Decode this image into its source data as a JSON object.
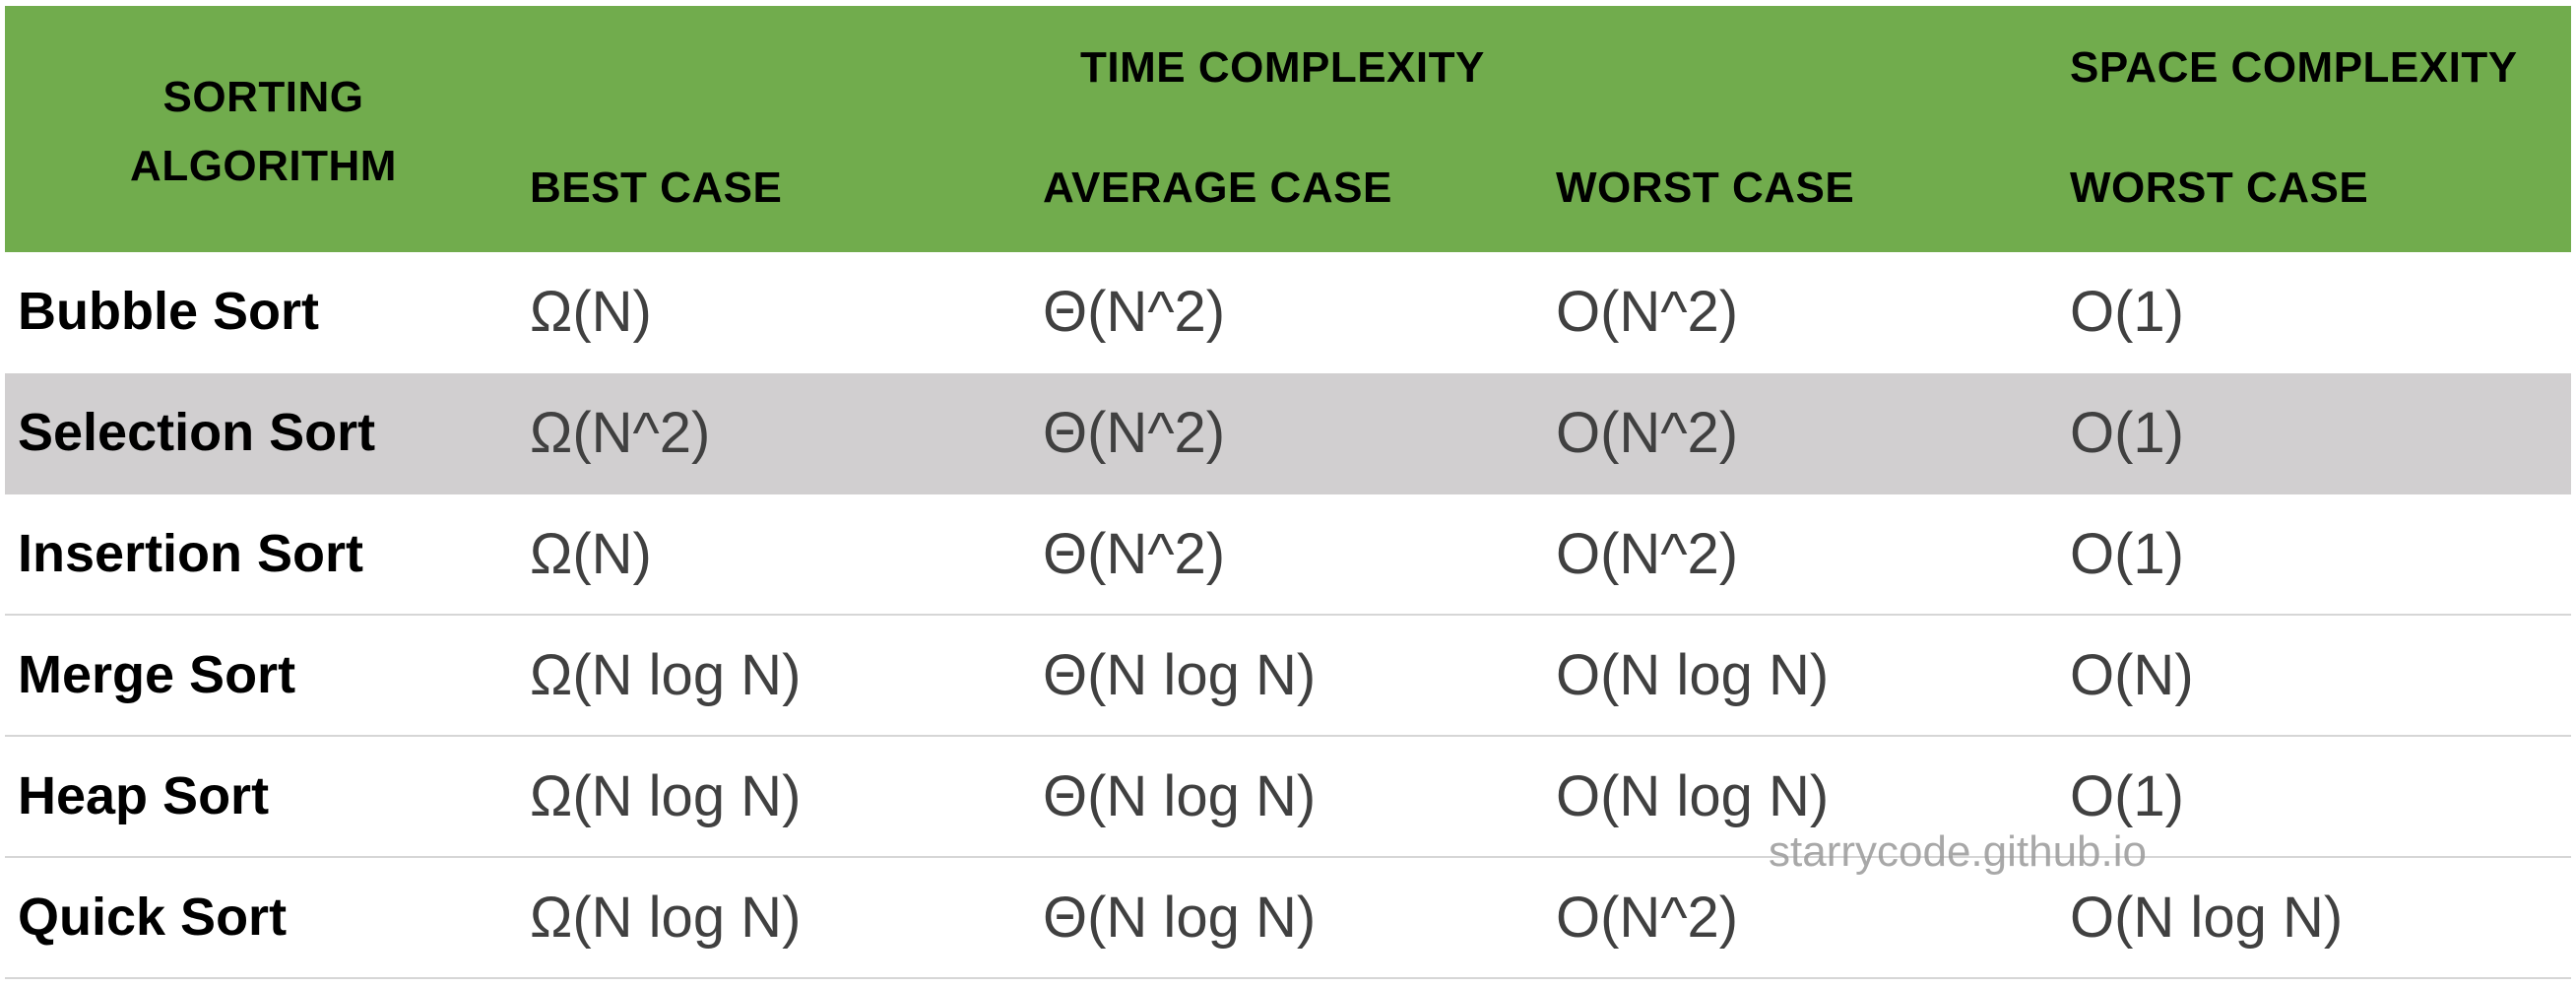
{
  "header": {
    "algorithm_line1": "SORTING",
    "algorithm_line2": "ALGORITHM",
    "time_complexity": "TIME COMPLEXITY",
    "space_complexity": "SPACE COMPLEXITY",
    "best_case": "BEST CASE",
    "average_case": "AVERAGE CASE",
    "worst_case": "WORST CASE",
    "space_worst_case": "WORST CASE"
  },
  "rows": [
    {
      "name": "Bubble Sort",
      "best": "Ω(N)",
      "average": "Θ(N^2)",
      "worst": "O(N^2)",
      "space": "O(1)"
    },
    {
      "name": "Selection Sort",
      "best": "Ω(N^2)",
      "average": "Θ(N^2)",
      "worst": "O(N^2)",
      "space": "O(1)"
    },
    {
      "name": "Insertion Sort",
      "best": "Ω(N)",
      "average": "Θ(N^2)",
      "worst": "O(N^2)",
      "space": "O(1)"
    },
    {
      "name": "Merge Sort",
      "best": "Ω(N log N)",
      "average": "Θ(N log N)",
      "worst": "O(N log N)",
      "space": "O(N)"
    },
    {
      "name": "Heap Sort",
      "best": "Ω(N log N)",
      "average": "Θ(N log N)",
      "worst": "O(N log N)",
      "space": "O(1)"
    },
    {
      "name": "Quick Sort",
      "best": "Ω(N log N)",
      "average": "Θ(N log N)",
      "worst": "O(N^2)",
      "space": "O(N log N)"
    }
  ],
  "watermark": "starrycode.github.io",
  "colors": {
    "header_bg": "#71ac4d",
    "shaded_row_bg": "#d1cfd0",
    "value_text": "#404040"
  }
}
